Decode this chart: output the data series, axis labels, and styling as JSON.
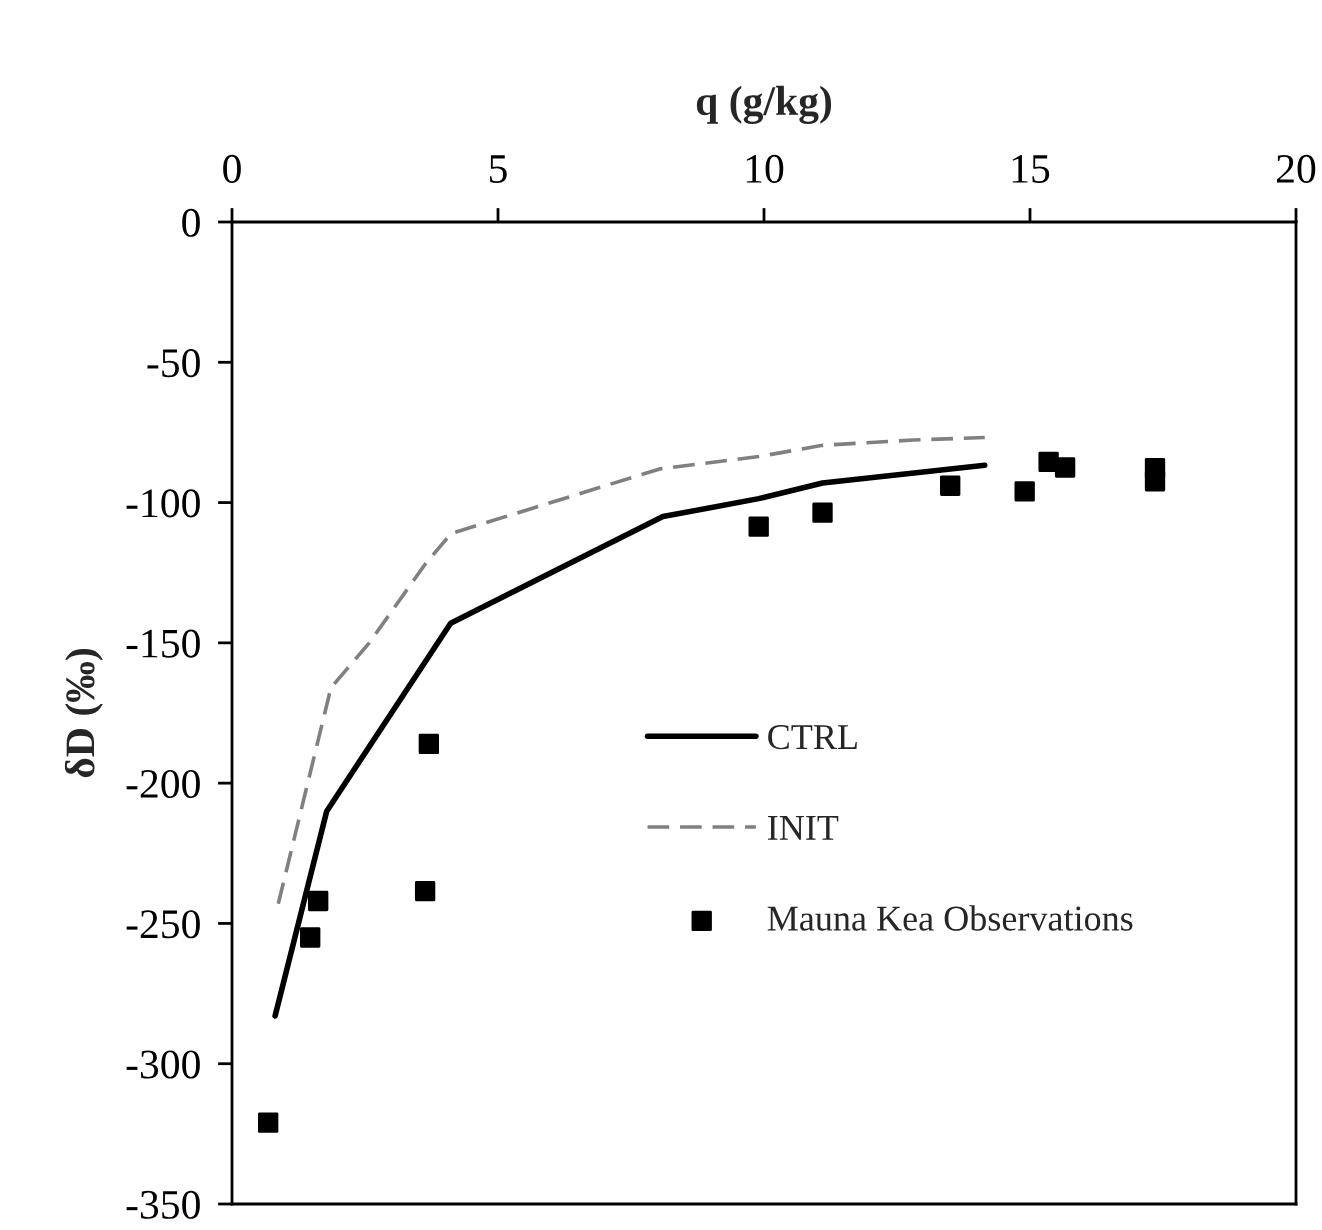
{
  "chart_data": {
    "type": "line",
    "xlabel": "q (g/kg)",
    "ylabel": "δD (‰)",
    "xlim": [
      0,
      20
    ],
    "xticks": [
      0,
      5,
      10,
      15,
      20
    ],
    "ylim": [
      -350,
      0
    ],
    "yticks": [
      0,
      -50,
      -100,
      -150,
      -200,
      -250,
      -300,
      -350
    ],
    "grid": false,
    "legend": "right",
    "series": [
      {
        "name": "CTRL",
        "color": "#000000",
        "line_style": "solid",
        "x": [
          0.81,
          1.78,
          4.11,
          8.1,
          9.9,
          11.1,
          14.15
        ],
        "values": [
          -283,
          -210,
          -143,
          -105,
          -98.6,
          -93,
          -86.7
        ]
      },
      {
        "name": "INIT",
        "color": "#808080",
        "line_style": "dashed",
        "x": [
          0.87,
          1.86,
          2.58,
          3.63,
          4.12,
          8.04,
          9.9,
          11.1,
          12.8,
          14.15
        ],
        "values": [
          -243,
          -166,
          -150,
          -122,
          -111,
          -88,
          -83.6,
          -79.6,
          -77.7,
          -76.8
        ]
      },
      {
        "name": "Mauna Kea Observations",
        "type": "scatter",
        "marker": "square",
        "color": "#000000",
        "x": [
          0.68,
          1.47,
          1.62,
          3.63,
          3.7,
          9.9,
          11.1,
          13.5,
          14.9,
          15.35,
          15.66,
          17.35,
          17.35
        ],
        "values": [
          -321,
          -255,
          -242,
          -238.5,
          -186,
          -108.6,
          -103.6,
          -94,
          -96,
          -85.5,
          -87.5,
          -87.7,
          -92.4
        ]
      }
    ]
  }
}
